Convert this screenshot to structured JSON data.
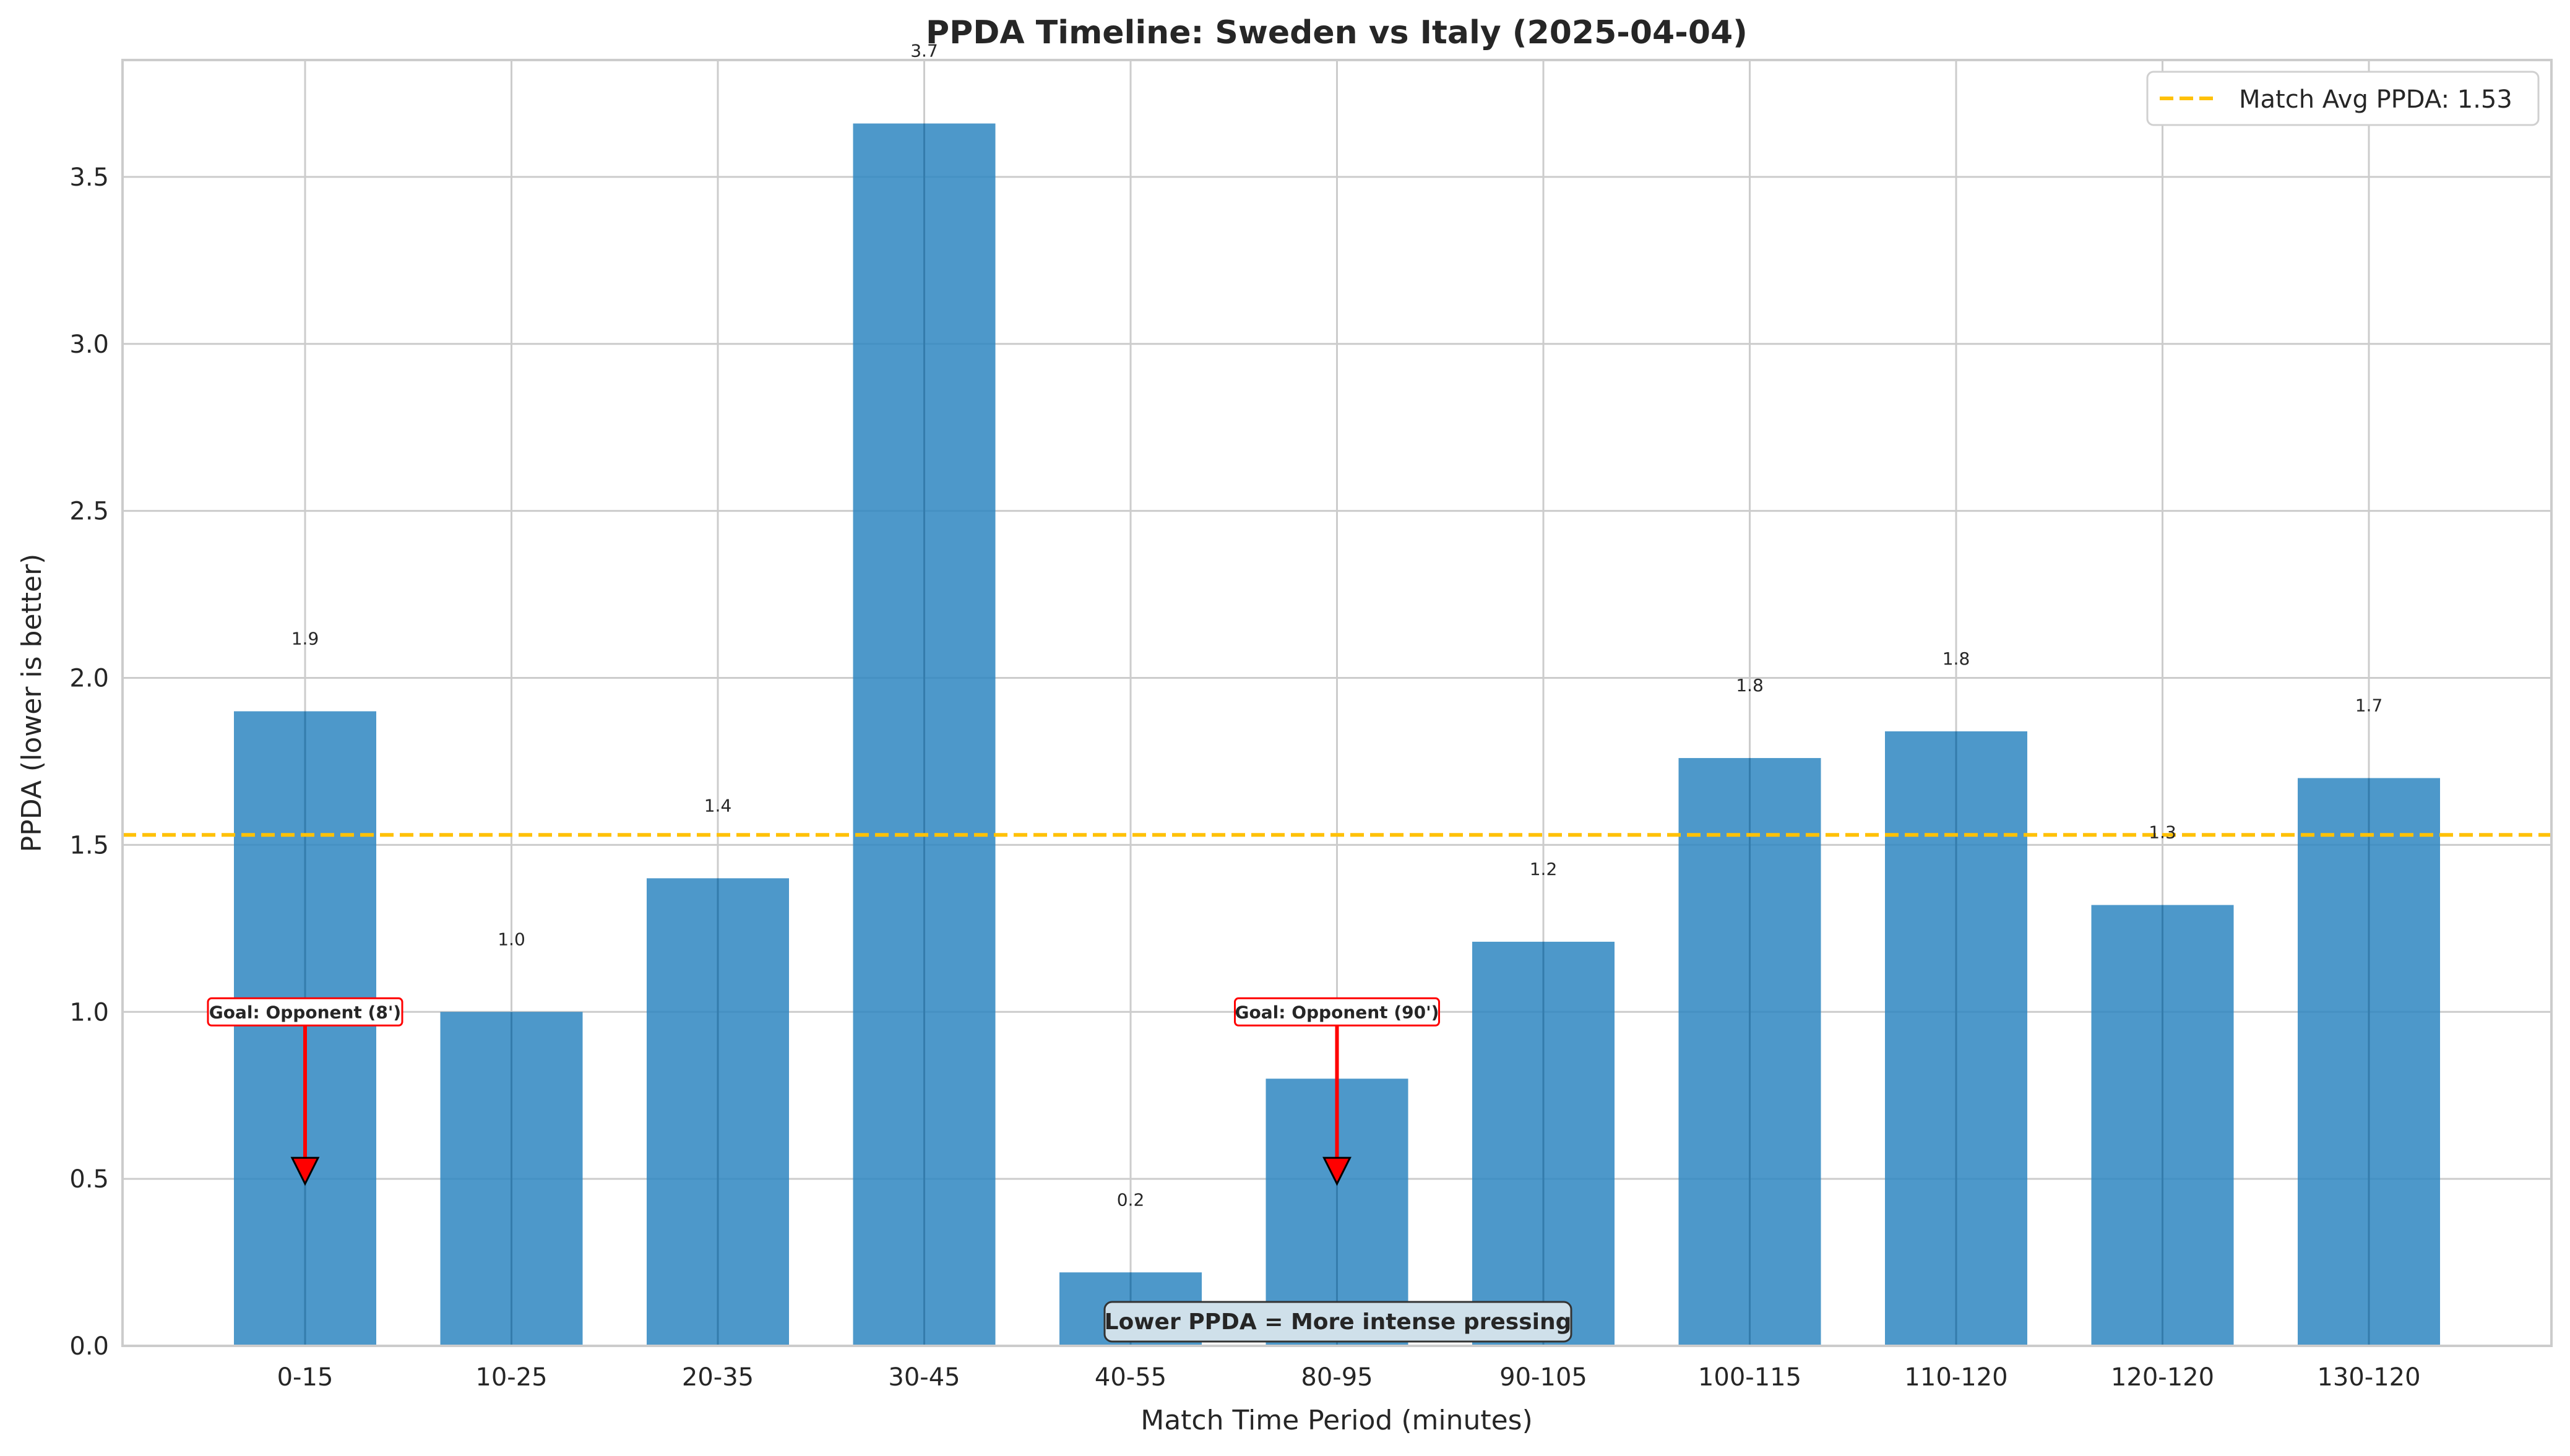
{
  "chart_data": {
    "type": "bar",
    "title": "PPDA Timeline: Sweden vs Italy (2025-04-04)",
    "xlabel": "Match Time Period (minutes)",
    "ylabel": "PPDA (lower is better)",
    "categories": [
      "0-15",
      "10-25",
      "20-35",
      "30-45",
      "40-55",
      "80-95",
      "90-105",
      "100-115",
      "110-120",
      "120-120",
      "130-120"
    ],
    "values": [
      1.9,
      1.0,
      1.4,
      3.66,
      0.22,
      0.8,
      1.21,
      1.76,
      1.84,
      1.32,
      1.7
    ],
    "value_labels": [
      "1.9",
      "1.0",
      "1.4",
      "3.7",
      "0.2",
      "0.8",
      "1.2",
      "1.8",
      "1.8",
      "1.3",
      "1.7"
    ],
    "ylim": [
      0,
      3.85
    ],
    "yticks": [
      "0.0",
      "0.5",
      "1.0",
      "1.5",
      "2.0",
      "2.5",
      "3.0",
      "3.5"
    ],
    "grid": true,
    "bar_color": "#2e86c1",
    "reference_line": {
      "value": 1.53,
      "label": "Match Avg PPDA: 1.53",
      "color": "#ffc107",
      "style": "dashed"
    },
    "legend_position": "top-right",
    "annotations": [
      {
        "category_index": 0,
        "text": "Goal: Opponent (8')",
        "label_y": 1.0,
        "arrow_to_y": 0.5,
        "color": "#ff0000"
      },
      {
        "category_index": 5,
        "text": "Goal: Opponent (90')",
        "label_y": 1.0,
        "arrow_to_y": 0.5,
        "color": "#ff0000"
      }
    ],
    "footnote": "Lower PPDA = More intense pressing"
  }
}
